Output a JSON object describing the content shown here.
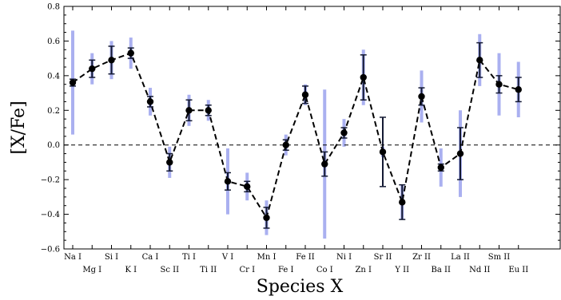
{
  "chart_data": {
    "type": "scatter",
    "xlabel": "Species X",
    "ylabel": "[X/Fe]",
    "ylim": [
      -0.6,
      0.8
    ],
    "yticks": [
      "−0.6",
      "−0.4",
      "−0.2",
      "0.0",
      "0.2",
      "0.4",
      "0.6",
      "0.8"
    ],
    "ytick_values": [
      -0.6,
      -0.4,
      -0.2,
      0.0,
      0.2,
      0.4,
      0.6,
      0.8
    ],
    "reference_line": 0.0,
    "line_style": "dashed",
    "colors": {
      "marker": "#000000",
      "wide_error": "#aab0f0",
      "narrow_error": "#141a33"
    },
    "categories": [
      "Na I",
      "Mg I",
      "Si I",
      "K I",
      "Ca I",
      "Sc II",
      "Ti I",
      "Ti II",
      "V I",
      "Cr I",
      "Mn I",
      "Fe I",
      "Fe II",
      "Co I",
      "Ni I",
      "Zn I",
      "Sr II",
      "Y II",
      "Zr II",
      "Ba II",
      "La II",
      "Nd II",
      "Sm II",
      "Eu II"
    ],
    "values": [
      0.36,
      0.44,
      0.49,
      0.53,
      0.25,
      -0.1,
      0.2,
      0.2,
      -0.21,
      -0.24,
      -0.42,
      0.0,
      0.29,
      -0.11,
      0.07,
      0.39,
      -0.04,
      -0.33,
      0.28,
      -0.13,
      -0.05,
      0.49,
      0.35,
      0.32
    ],
    "error_wide": [
      0.3,
      0.09,
      0.11,
      0.09,
      0.08,
      0.09,
      0.09,
      0.06,
      0.19,
      0.08,
      0.1,
      0.06,
      0.06,
      0.43,
      0.08,
      0.16,
      0.03,
      0.1,
      0.15,
      0.11,
      0.25,
      0.15,
      0.18,
      0.16
    ],
    "error_narrow": [
      0.02,
      0.05,
      0.08,
      0.03,
      0.03,
      0.05,
      0.06,
      0.03,
      0.05,
      0.03,
      0.06,
      0.03,
      0.05,
      0.07,
      0.03,
      0.13,
      0.2,
      0.1,
      0.05,
      0.02,
      0.15,
      0.1,
      0.05,
      0.07
    ]
  }
}
